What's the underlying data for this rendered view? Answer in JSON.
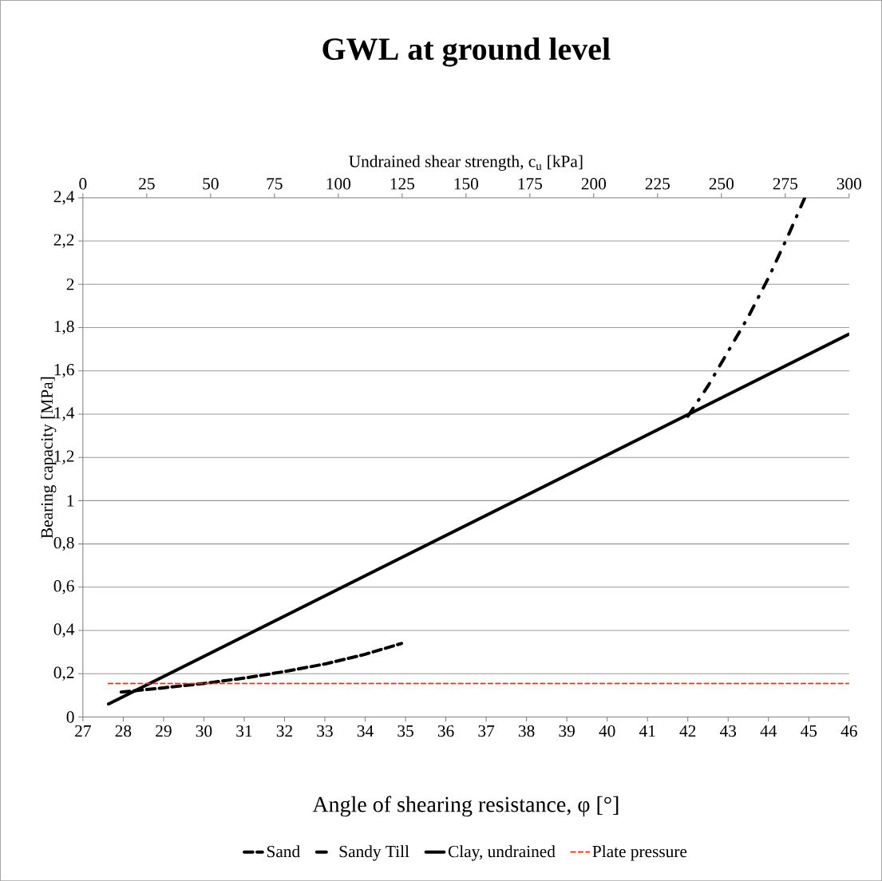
{
  "chart_data": {
    "type": "line",
    "title": "GWL at ground level",
    "xlabel": "Angle of shearing resistance, φ [°]",
    "x2label": "Undrained shear strength, c$_{u}$ [kPa]",
    "ylabel": "Bearing capacity [MPa]",
    "xlim": [
      27,
      46
    ],
    "xticks": [
      27,
      28,
      29,
      30,
      31,
      32,
      33,
      34,
      35,
      36,
      37,
      38,
      39,
      40,
      41,
      42,
      43,
      44,
      45,
      46
    ],
    "x2lim": [
      0,
      300
    ],
    "x2ticks": [
      0,
      25,
      50,
      75,
      100,
      125,
      150,
      175,
      200,
      225,
      250,
      275,
      300
    ],
    "ylim": [
      0,
      2.4
    ],
    "yticks": [
      0,
      {
        "value": 0.2,
        "label": "0,2"
      },
      {
        "value": 0.4,
        "label": "0,4"
      },
      {
        "value": 0.6,
        "label": "0,6"
      },
      {
        "value": 0.8,
        "label": "0,8"
      },
      1,
      {
        "value": 1.2,
        "label": "1,2"
      },
      {
        "value": 1.4,
        "label": "1,4"
      },
      {
        "value": 1.6,
        "label": "1,6"
      },
      {
        "value": 1.8,
        "label": "1,8"
      },
      2,
      {
        "value": 2.2,
        "label": "2,2"
      },
      {
        "value": 2.4,
        "label": "2,4"
      }
    ],
    "grid": "y",
    "legend": "bottom",
    "marker": "none",
    "series": [
      {
        "name": "Sand",
        "color": "#000000",
        "line_style": "dashed",
        "x": [
          27.95,
          29,
          30,
          31,
          32,
          33,
          34,
          34.9
        ],
        "values": [
          0.115,
          0.135,
          0.155,
          0.18,
          0.21,
          0.245,
          0.29,
          0.34
        ]
      },
      {
        "name": "Sandy Till",
        "color": "#000000",
        "line_style": "dashdot",
        "x": [
          42,
          42.5,
          43,
          43.5,
          44,
          44.5,
          44.9
        ],
        "values": [
          1.39,
          1.53,
          1.69,
          1.85,
          2.03,
          2.23,
          2.4
        ]
      },
      {
        "name": "Clay, undrained",
        "color": "#000000",
        "line_style": "solid",
        "axis": "x2",
        "x": [
          10,
          300
        ],
        "values": [
          0.06,
          1.77
        ]
      },
      {
        "name": "Plate pressure",
        "color": "#ff2a00",
        "line_style": "dashed",
        "axis": "x2",
        "x": [
          10,
          300
        ],
        "values": [
          0.155,
          0.155
        ]
      }
    ]
  }
}
